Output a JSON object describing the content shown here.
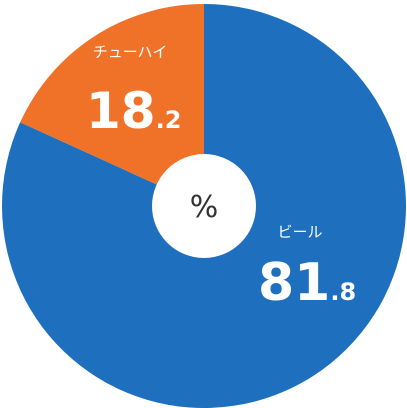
{
  "chart_data": {
    "type": "pie",
    "style": "donut",
    "center_label": "%",
    "slices": [
      {
        "label": "ビール",
        "value": 81.8,
        "value_int": "81",
        "value_dec": ".8",
        "color": "#1f6fbf"
      },
      {
        "label": "チューハイ",
        "value": 18.2,
        "value_int": "18",
        "value_dec": ".2",
        "color": "#f07229"
      }
    ],
    "start": "top",
    "direction": "counterclockwise-from-top for second slice"
  }
}
